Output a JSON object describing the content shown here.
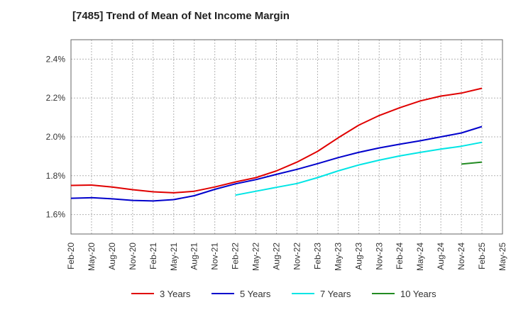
{
  "chart_data": {
    "type": "line",
    "title": "[7485]  Trend of Mean of Net Income Margin",
    "xlabel": "",
    "ylabel": "",
    "ylim": [
      1.5,
      2.5
    ],
    "yticks": [
      1.6,
      1.8,
      2.0,
      2.2,
      2.4
    ],
    "ytick_labels": [
      "1.6%",
      "1.8%",
      "2.0%",
      "2.2%",
      "2.4%"
    ],
    "xticks": [
      "Feb-20",
      "May-20",
      "Aug-20",
      "Nov-20",
      "Feb-21",
      "May-21",
      "Aug-21",
      "Nov-21",
      "Feb-22",
      "May-22",
      "Aug-22",
      "Nov-22",
      "Feb-23",
      "May-23",
      "Aug-23",
      "Nov-23",
      "Feb-24",
      "May-24",
      "Aug-24",
      "Nov-24",
      "Feb-25",
      "May-25"
    ],
    "grid": true,
    "legend_position": "bottom",
    "series": [
      {
        "name": "3 Years",
        "color": "#e00000",
        "x": [
          "Feb-20",
          "May-20",
          "Aug-20",
          "Nov-20",
          "Feb-21",
          "May-21",
          "Aug-21",
          "Nov-21",
          "Feb-22",
          "May-22",
          "Aug-22",
          "Nov-22",
          "Feb-23",
          "May-23",
          "Aug-23",
          "Nov-23",
          "Feb-24",
          "May-24",
          "Aug-24",
          "Nov-24",
          "Feb-25"
        ],
        "values": [
          1.75,
          1.752,
          1.742,
          1.728,
          1.717,
          1.712,
          1.72,
          1.742,
          1.768,
          1.79,
          1.825,
          1.87,
          1.925,
          1.995,
          2.06,
          2.11,
          2.15,
          2.185,
          2.21,
          2.225,
          2.25
        ]
      },
      {
        "name": "5 Years",
        "color": "#0000cc",
        "x": [
          "Feb-20",
          "May-20",
          "Aug-20",
          "Nov-20",
          "Feb-21",
          "May-21",
          "Aug-21",
          "Nov-21",
          "Feb-22",
          "May-22",
          "Aug-22",
          "Nov-22",
          "Feb-23",
          "May-23",
          "Aug-23",
          "Nov-23",
          "Feb-24",
          "May-24",
          "Aug-24",
          "Nov-24",
          "Feb-25"
        ],
        "values": [
          1.684,
          1.687,
          1.681,
          1.673,
          1.67,
          1.677,
          1.697,
          1.73,
          1.758,
          1.78,
          1.807,
          1.833,
          1.862,
          1.893,
          1.92,
          1.943,
          1.962,
          1.98,
          2.0,
          2.02,
          2.053
        ]
      },
      {
        "name": "7 Years",
        "color": "#00e5e5",
        "x": [
          "Feb-22",
          "May-22",
          "Aug-22",
          "Nov-22",
          "Feb-23",
          "May-23",
          "Aug-23",
          "Nov-23",
          "Feb-24",
          "May-24",
          "Aug-24",
          "Nov-24",
          "Feb-25"
        ],
        "values": [
          1.7,
          1.72,
          1.74,
          1.76,
          1.79,
          1.825,
          1.855,
          1.88,
          1.902,
          1.92,
          1.937,
          1.952,
          1.972
        ]
      },
      {
        "name": "10 Years",
        "color": "#228b22",
        "x": [
          "Nov-24",
          "Feb-25"
        ],
        "values": [
          1.86,
          1.87
        ]
      }
    ]
  }
}
